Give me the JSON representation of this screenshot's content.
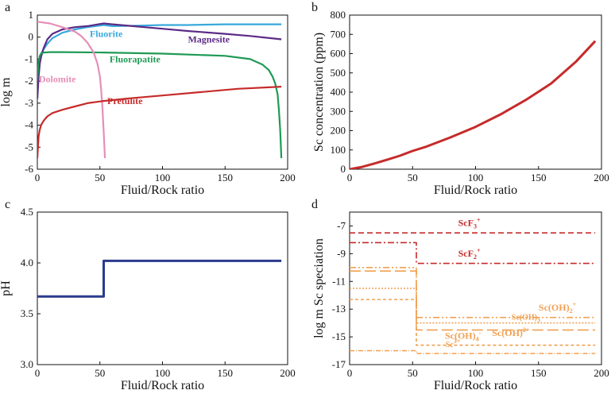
{
  "chart_data": [
    {
      "panel_label": "a",
      "type": "line",
      "xlabel": "Fluid/Rock ratio",
      "ylabel": "log m",
      "xlim": [
        0,
        200
      ],
      "ylim": [
        -6,
        1
      ],
      "xticks": [
        0,
        50,
        100,
        150,
        200
      ],
      "yticks": [
        1,
        0,
        -1,
        -2,
        -3,
        -4,
        -5,
        -6
      ],
      "series": [
        {
          "name": "Fluorite",
          "color": "#39a9dc",
          "x": [
            0,
            1,
            2,
            3,
            5,
            8,
            12,
            20,
            30,
            40,
            53,
            60,
            80,
            100,
            120,
            150,
            180,
            195
          ],
          "y": [
            -2.2,
            -1.2,
            -0.9,
            -0.75,
            -0.55,
            -0.3,
            -0.05,
            0.2,
            0.35,
            0.45,
            0.55,
            0.5,
            0.52,
            0.55,
            0.55,
            0.58,
            0.58,
            0.58
          ]
        },
        {
          "name": "Magnesite",
          "color": "#5b2b86",
          "x": [
            0,
            1,
            2,
            3,
            5,
            8,
            12,
            20,
            30,
            40,
            53,
            60,
            80,
            100,
            120,
            150,
            170,
            195
          ],
          "y": [
            -2.8,
            -1.8,
            -1.2,
            -0.9,
            -0.5,
            -0.1,
            0.15,
            0.35,
            0.45,
            0.5,
            0.62,
            0.58,
            0.48,
            0.38,
            0.28,
            0.15,
            0.05,
            -0.1
          ]
        },
        {
          "name": "Fluorapatite",
          "color": "#1f9a55",
          "x": [
            0,
            1,
            2,
            3,
            5,
            10,
            20,
            53,
            100,
            150,
            170,
            180,
            185,
            188,
            190,
            192,
            193,
            194,
            195
          ],
          "y": [
            -1.9,
            -1.1,
            -0.85,
            -0.75,
            -0.7,
            -0.68,
            -0.68,
            -0.7,
            -0.75,
            -0.85,
            -1.0,
            -1.25,
            -1.5,
            -1.8,
            -2.1,
            -2.6,
            -3.3,
            -4.2,
            -5.5
          ]
        },
        {
          "name": "Dolomite",
          "color": "#e58fb8",
          "x": [
            0,
            10,
            20,
            30,
            35,
            40,
            45,
            48,
            50,
            51,
            52,
            53,
            54
          ],
          "y": [
            0.7,
            0.62,
            0.45,
            0.25,
            0.05,
            -0.25,
            -0.7,
            -1.2,
            -1.8,
            -2.4,
            -3.2,
            -4.3,
            -5.5
          ]
        },
        {
          "name": "Pretulite",
          "color": "#c62b2b",
          "x": [
            0,
            0.5,
            1,
            2,
            3,
            5,
            8,
            12,
            20,
            30,
            40,
            53,
            70,
            100,
            130,
            160,
            195
          ],
          "y": [
            -5.5,
            -5.0,
            -4.5,
            -4.2,
            -4.0,
            -3.8,
            -3.6,
            -3.45,
            -3.3,
            -3.15,
            -3.0,
            -2.9,
            -2.8,
            -2.65,
            -2.5,
            -2.35,
            -2.25
          ]
        }
      ]
    },
    {
      "panel_label": "b",
      "type": "line",
      "xlabel": "Fluid/Rock ratio",
      "ylabel": "Sc concentration (ppm)",
      "xlim": [
        0,
        200
      ],
      "ylim": [
        0,
        800
      ],
      "xticks": [
        0,
        50,
        100,
        150,
        200
      ],
      "yticks": [
        0,
        100,
        200,
        300,
        400,
        500,
        600,
        700,
        800
      ],
      "series": [
        {
          "name": "",
          "color": "#c62b2b",
          "x": [
            0,
            10,
            20,
            30,
            40,
            50,
            60,
            80,
            100,
            120,
            140,
            160,
            180,
            195
          ],
          "y": [
            0,
            12,
            30,
            50,
            70,
            95,
            115,
            165,
            220,
            285,
            360,
            445,
            560,
            665
          ]
        }
      ]
    },
    {
      "panel_label": "c",
      "type": "line",
      "xlabel": "Fluid/Rock ratio",
      "ylabel": "pH",
      "xlim": [
        0,
        200
      ],
      "ylim": [
        3.0,
        4.5
      ],
      "xticks": [
        0,
        50,
        100,
        150,
        200
      ],
      "yticks": [
        "3.0",
        "3.5",
        "4.0",
        "4.5"
      ],
      "series": [
        {
          "name": "",
          "color": "#2b3a8c",
          "x": [
            0,
            53,
            53,
            195
          ],
          "y": [
            3.67,
            3.67,
            4.02,
            4.02
          ]
        }
      ]
    },
    {
      "panel_label": "d",
      "type": "line",
      "xlabel": "Fluid/Rock ratio",
      "ylabel": "log m Sc speciation",
      "xlim": [
        0,
        200
      ],
      "ylim": [
        -17,
        -6
      ],
      "xticks": [
        0,
        50,
        100,
        150,
        200
      ],
      "yticks": [
        -7,
        -9,
        -11,
        -13,
        -15,
        -17
      ],
      "series": [
        {
          "name": "ScF3+",
          "label_main": "ScF",
          "label_sub": "3",
          "label_sup": "+",
          "color": "#c62b2b",
          "dash": "7,4",
          "x": [
            0,
            195
          ],
          "y": [
            -7.5,
            -7.5
          ],
          "label_x": 95,
          "label_y": -7.0,
          "label_size": "lg"
        },
        {
          "name": "ScF2+",
          "label_main": "ScF",
          "label_sub": "2",
          "label_sup": "+",
          "color": "#c62b2b",
          "dash": "8,3,2,3",
          "x": [
            0,
            53,
            53,
            195
          ],
          "y": [
            -8.2,
            -8.2,
            -9.7,
            -9.7
          ],
          "label_x": 95,
          "label_y": -9.2,
          "label_size": "lg"
        },
        {
          "name": "Sc(OH)2+",
          "label_main": "Sc(OH)",
          "label_sub": "2",
          "label_sup": "+",
          "color": "#f0a050",
          "dash": "8,3,2,3,2,3",
          "x": [
            0,
            53,
            53,
            195
          ],
          "y": [
            -10.0,
            -10.0,
            -13.6,
            -13.6
          ],
          "label_x": 165,
          "label_y": -13.1,
          "label_size": "lg"
        },
        {
          "name": "Sc(OH)3",
          "label_main": "Sc(OH)",
          "label_sub": "3",
          "label_sup": "",
          "color": "#f0a050",
          "dash": "2,2",
          "x": [
            0,
            53,
            53,
            195
          ],
          "y": [
            -11.5,
            -11.5,
            -14.0,
            -14.0
          ],
          "label_x": 140,
          "label_y": -13.75,
          "label_size": "sm"
        },
        {
          "name": "Sc(OH)2+",
          "label_main": "Sc(OH)",
          "label_sub": "",
          "label_sup": "2+",
          "color": "#f0a050",
          "dash": "14,5",
          "x": [
            0,
            53,
            53,
            195
          ],
          "y": [
            -10.25,
            -10.25,
            -14.5,
            -14.5
          ],
          "label_x": 128,
          "label_y": -14.95,
          "label_size": "lg"
        },
        {
          "name": "Sc(OH)4-",
          "label_main": "Sc(OH)",
          "label_sub": "4",
          "label_sup": "-",
          "color": "#f0a050",
          "dash": "4,3",
          "x": [
            0,
            53,
            53,
            195
          ],
          "y": [
            -12.3,
            -12.3,
            -15.6,
            -15.6
          ],
          "label_x": 90,
          "label_y": -15.15,
          "label_size": "lg"
        },
        {
          "name": "Sc3+",
          "label_main": "Sc",
          "label_sub": "",
          "label_sup": "3+",
          "color": "#f0a050",
          "dash": "6,2,1,2",
          "x": [
            0,
            53,
            53,
            195
          ],
          "y": [
            -16.0,
            -16.0,
            -16.2,
            -16.2
          ],
          "label_x": 82,
          "label_y": -15.75,
          "label_size": "sm"
        }
      ]
    }
  ],
  "annotations_a": [
    {
      "text": "Fluorite",
      "color": "#39a9dc",
      "x": 55,
      "y": 0.0
    },
    {
      "text": "Magnesite",
      "color": "#5b2b86",
      "x": 137,
      "y": -0.25
    },
    {
      "text": "Fluorapatite",
      "color": "#1f9a55",
      "x": 78,
      "y": -1.15
    },
    {
      "text": "Dolomite",
      "color": "#e58fb8",
      "x": 16,
      "y": -2.05
    },
    {
      "text": "Pretulite",
      "color": "#c62b2b",
      "x": 70,
      "y": -3.05
    }
  ]
}
